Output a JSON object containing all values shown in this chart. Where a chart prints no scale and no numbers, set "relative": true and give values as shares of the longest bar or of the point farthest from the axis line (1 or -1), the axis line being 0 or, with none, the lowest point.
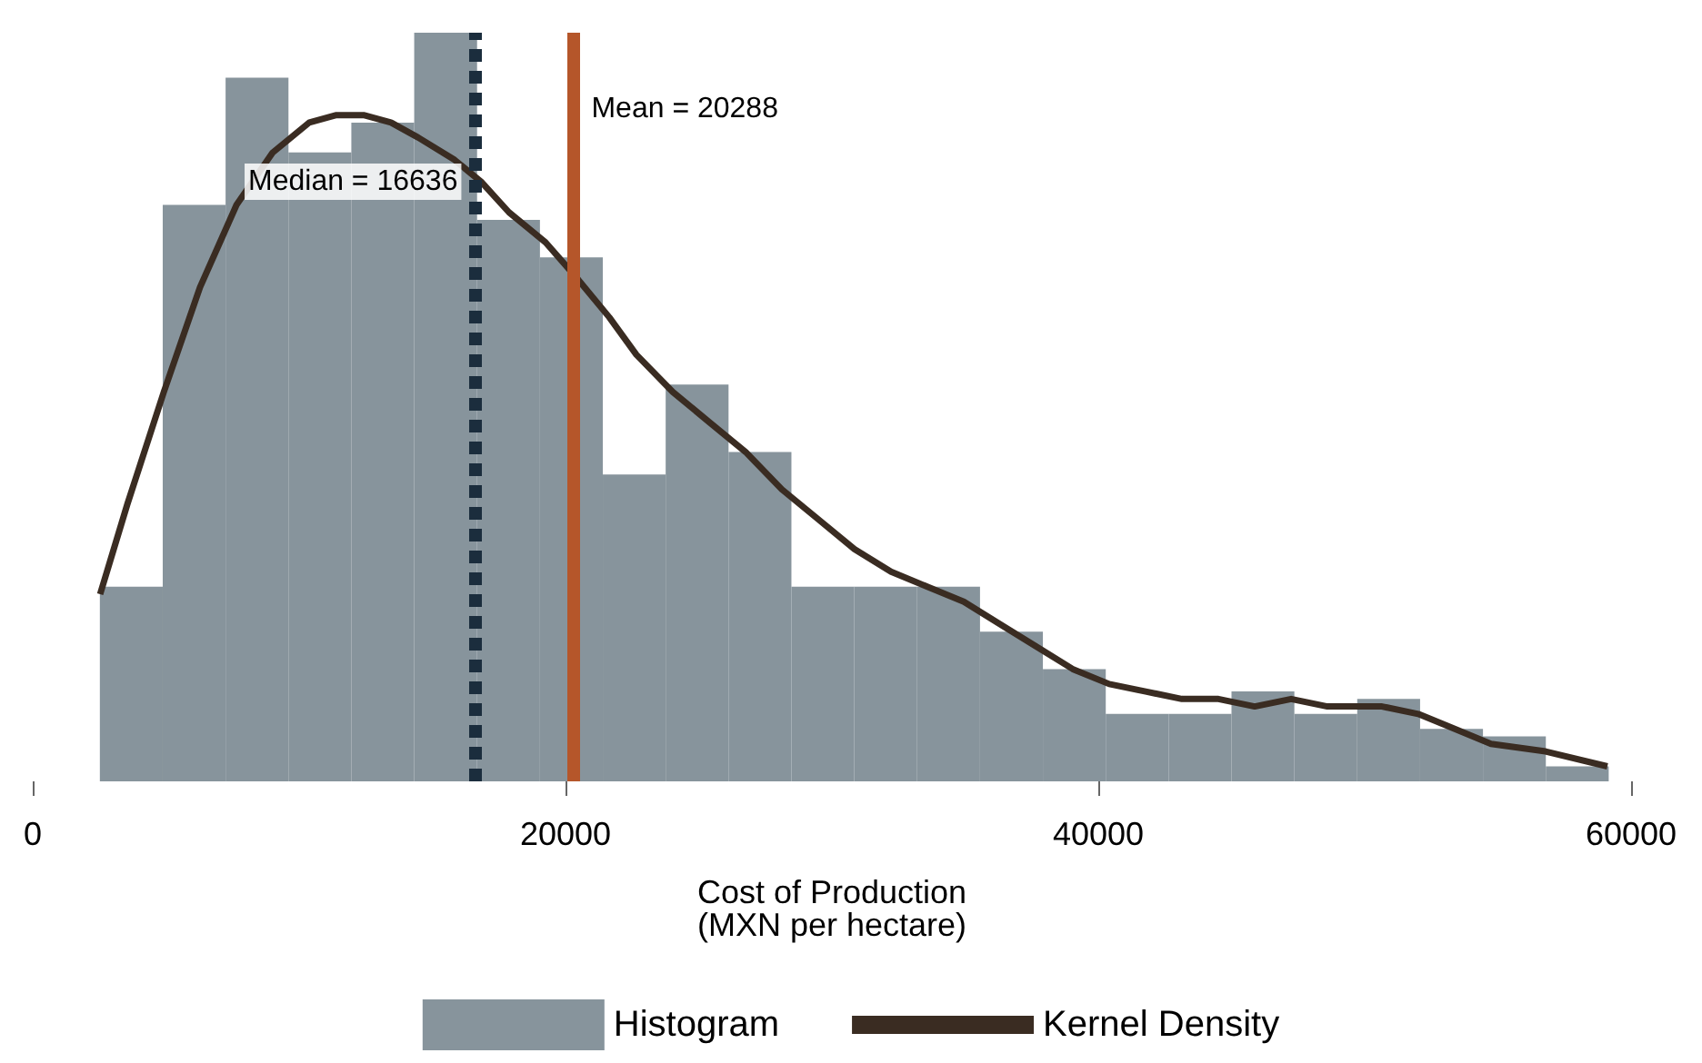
{
  "chart_data": {
    "type": "histogram",
    "relative": true,
    "xlabel": "Cost of Production\n(MXN per hectare)",
    "xlim": [
      0,
      60000
    ],
    "xticks": [
      0,
      20000,
      40000,
      60000
    ],
    "grid": false,
    "legend": "bottom",
    "bins": [
      2520,
      4880,
      7240,
      9600,
      11960,
      14320,
      16680,
      19040,
      21400,
      23760,
      26120,
      28480,
      30840,
      33200,
      35560,
      37920,
      40280,
      42640,
      45000,
      47360,
      49720,
      52080,
      54440,
      56800,
      59160
    ],
    "series": [
      {
        "name": "Histogram",
        "color": "#87949c",
        "values": [
          0.26,
          0.77,
          0.94,
          0.84,
          0.88,
          1,
          0.75,
          0.7,
          0.41,
          0.53,
          0.44,
          0.26,
          0.26,
          0.26,
          0.2,
          0.15,
          0.09,
          0.09,
          0.12,
          0.09,
          0.11,
          0.07,
          0.06,
          0.02
        ]
      },
      {
        "name": "Kernel Density",
        "type": "line",
        "color": "#3a2c22",
        "x": [
          2530,
          3550,
          4920,
          6280,
          7650,
          9010,
          10380,
          11400,
          12420,
          13450,
          14470,
          15840,
          16860,
          17880,
          19250,
          20480,
          21640,
          22660,
          24030,
          25390,
          26760,
          28120,
          29490,
          30850,
          32220,
          33580,
          34950,
          36310,
          37680,
          39040,
          40410,
          41780,
          43140,
          44510,
          45870,
          47240,
          48600,
          50650,
          52010,
          53380,
          54740,
          56790,
          59110
        ],
        "values": [
          0.25,
          0.37,
          0.52,
          0.66,
          0.77,
          0.84,
          0.88,
          0.89,
          0.89,
          0.88,
          0.86,
          0.83,
          0.8,
          0.76,
          0.72,
          0.67,
          0.62,
          0.57,
          0.52,
          0.48,
          0.44,
          0.39,
          0.35,
          0.31,
          0.28,
          0.26,
          0.24,
          0.21,
          0.18,
          0.15,
          0.13,
          0.12,
          0.11,
          0.11,
          0.1,
          0.11,
          0.1,
          0.1,
          0.09,
          0.07,
          0.05,
          0.04,
          0.02
        ]
      }
    ],
    "ref_lines": [
      {
        "axis": "x",
        "value": 20288,
        "label": "Mean = 20288",
        "color": "#b5562a",
        "line_style": "solid"
      },
      {
        "axis": "x",
        "value": 16636,
        "label": "Median = 16636",
        "color": "#1b2d3d",
        "line_style": "dashed"
      }
    ]
  }
}
